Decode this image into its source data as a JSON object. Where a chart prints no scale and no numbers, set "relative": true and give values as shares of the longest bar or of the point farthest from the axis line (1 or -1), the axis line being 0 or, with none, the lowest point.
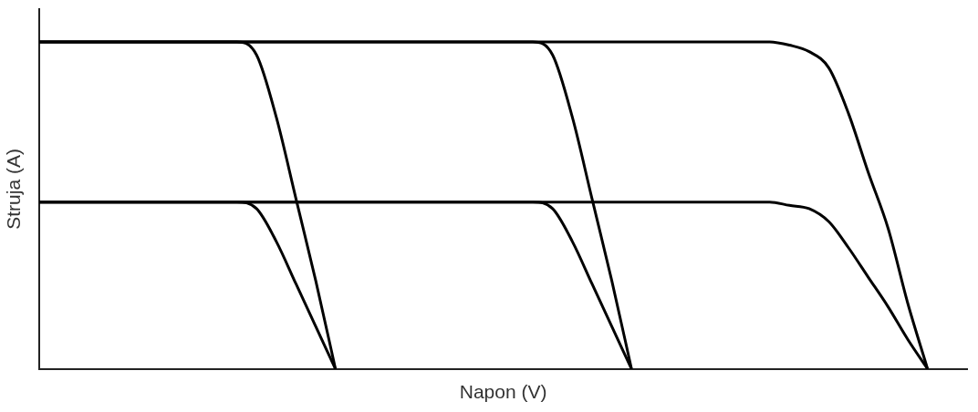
{
  "chart_data": {
    "type": "line",
    "xlabel": "Napon (V)",
    "ylabel": "Struja (A)",
    "relative": true,
    "grid": false,
    "legend": false,
    "marker": "none",
    "line_style": "solid",
    "categories": [
      null,
      null,
      null,
      null,
      null,
      null,
      null,
      null,
      null,
      null,
      null,
      null,
      null,
      null,
      null,
      null,
      null,
      null,
      null,
      null,
      null,
      null,
      null,
      null,
      null,
      null,
      null,
      null,
      null,
      null,
      null,
      null,
      null,
      null,
      null,
      null,
      null,
      null,
      null,
      null,
      null,
      null,
      null,
      null,
      null,
      null,
      null,
      null
    ],
    "series": [
      {
        "color": "#000000",
        "values": [
          1,
          1,
          1,
          1,
          1,
          1,
          1,
          1,
          1,
          1,
          1,
          0.96,
          0.77,
          0.52,
          0.27,
          0,
          null,
          null,
          null,
          null,
          null,
          null,
          null,
          null,
          null,
          null,
          null,
          null,
          null,
          null,
          null,
          null,
          null,
          null,
          null,
          null,
          null,
          null,
          null,
          null,
          null,
          null,
          null,
          null,
          null,
          null,
          null,
          null
        ]
      },
      {
        "color": "#000000",
        "values": [
          0.51,
          0.51,
          0.51,
          0.51,
          0.51,
          0.51,
          0.51,
          0.51,
          0.51,
          0.51,
          0.51,
          0.49,
          0.39,
          0.26,
          0.13,
          0,
          null,
          null,
          null,
          null,
          null,
          null,
          null,
          null,
          null,
          null,
          null,
          null,
          null,
          null,
          null,
          null,
          null,
          null,
          null,
          null,
          null,
          null,
          null,
          null,
          null,
          null,
          null,
          null,
          null,
          null,
          null,
          null
        ]
      },
      {
        "color": "#000000",
        "values": [
          1,
          1,
          1,
          1,
          1,
          1,
          1,
          1,
          1,
          1,
          1,
          1,
          1,
          1,
          1,
          1,
          1,
          1,
          1,
          1,
          1,
          1,
          1,
          1,
          1,
          1,
          0.96,
          0.77,
          0.52,
          0.27,
          0,
          null,
          null,
          null,
          null,
          null,
          null,
          null,
          null,
          null,
          null,
          null,
          null,
          null,
          null,
          null,
          null,
          null
        ]
      },
      {
        "color": "#000000",
        "values": [
          0.51,
          0.51,
          0.51,
          0.51,
          0.51,
          0.51,
          0.51,
          0.51,
          0.51,
          0.51,
          0.51,
          0.51,
          0.51,
          0.51,
          0.51,
          0.51,
          0.51,
          0.51,
          0.51,
          0.51,
          0.51,
          0.51,
          0.51,
          0.51,
          0.51,
          0.51,
          0.49,
          0.39,
          0.26,
          0.13,
          0,
          null,
          null,
          null,
          null,
          null,
          null,
          null,
          null,
          null,
          null,
          null,
          null,
          null,
          null,
          null,
          null,
          null
        ]
      },
      {
        "color": "#000000",
        "values": [
          1,
          1,
          1,
          1,
          1,
          1,
          1,
          1,
          1,
          1,
          1,
          1,
          1,
          1,
          1,
          1,
          1,
          1,
          1,
          1,
          1,
          1,
          1,
          1,
          1,
          1,
          1,
          1,
          1,
          1,
          1,
          1,
          1,
          1,
          1,
          1,
          1,
          1,
          0.99,
          0.97,
          0.92,
          0.78,
          0.6,
          0.43,
          0.2,
          0,
          null,
          null
        ]
      },
      {
        "color": "#000000",
        "values": [
          0.51,
          0.51,
          0.51,
          0.51,
          0.51,
          0.51,
          0.51,
          0.51,
          0.51,
          0.51,
          0.51,
          0.51,
          0.51,
          0.51,
          0.51,
          0.51,
          0.51,
          0.51,
          0.51,
          0.51,
          0.51,
          0.51,
          0.51,
          0.51,
          0.51,
          0.51,
          0.51,
          0.51,
          0.51,
          0.51,
          0.51,
          0.51,
          0.51,
          0.51,
          0.51,
          0.51,
          0.51,
          0.51,
          0.5,
          0.49,
          0.45,
          0.37,
          0.28,
          0.19,
          0.09,
          0,
          null,
          null
        ]
      }
    ]
  }
}
